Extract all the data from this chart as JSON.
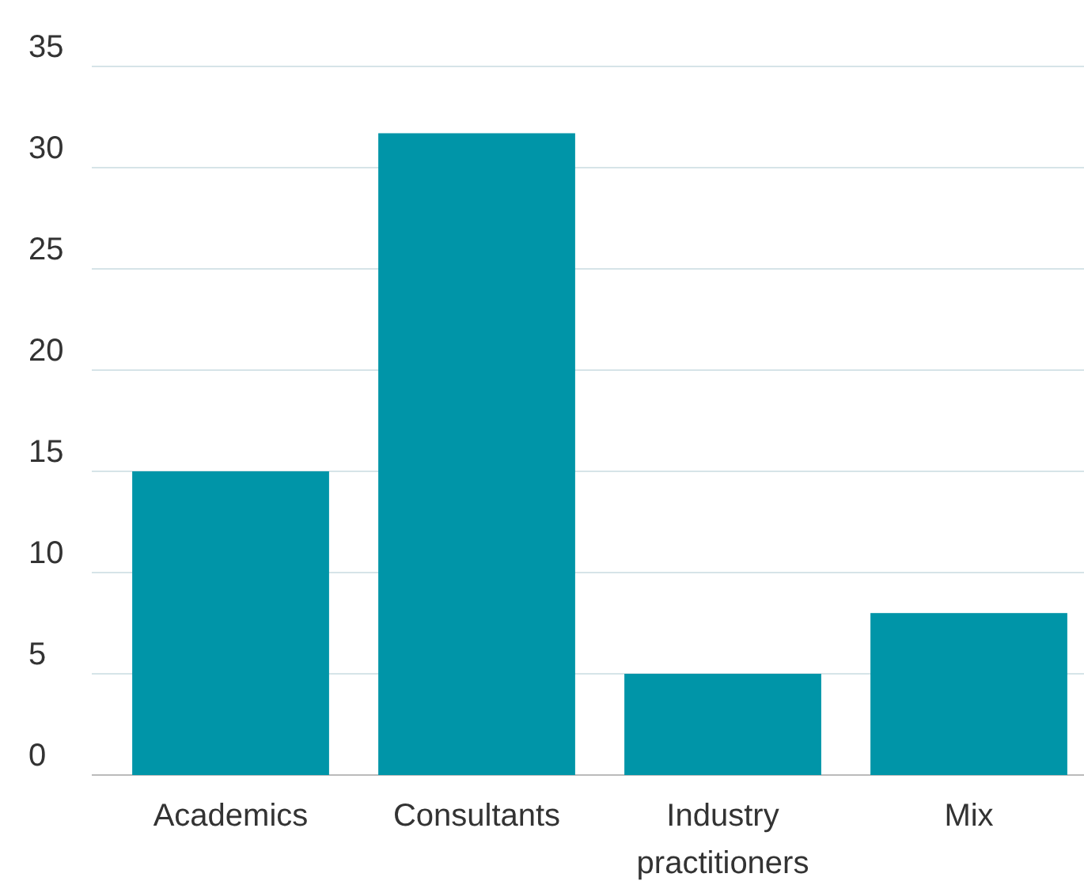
{
  "chart_data": {
    "type": "bar",
    "categories": [
      "Academics",
      "Consultants",
      "Industry practitioners",
      "Mix"
    ],
    "values": [
      15,
      31.7,
      5,
      8
    ],
    "color": "#0095a8",
    "ylim": [
      0,
      35
    ],
    "yticks": [
      0,
      5,
      10,
      15,
      20,
      25,
      30,
      35
    ],
    "grid": "y"
  }
}
